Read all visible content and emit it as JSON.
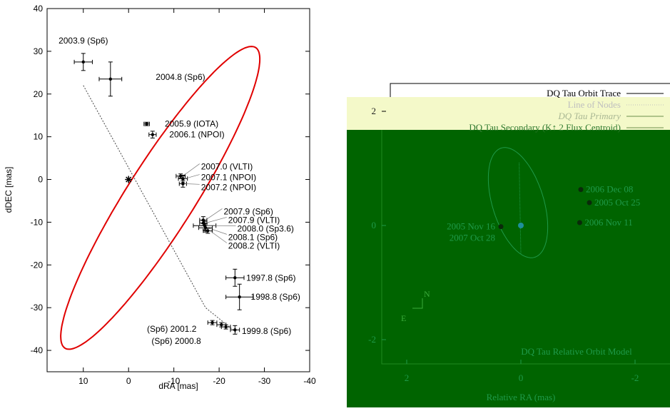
{
  "left_chart": {
    "chart_data": {
      "type": "scatter",
      "xlabel": "dRA [mas]",
      "ylabel": "dDEC [mas]",
      "xlim": [
        18,
        -40
      ],
      "ylim": [
        -45,
        40
      ],
      "x_ticks": [
        10,
        0,
        -10,
        -20,
        -30,
        -40
      ],
      "x_tick_labels": [
        "10",
        "0",
        "-10",
        "-20",
        "-30",
        "-40"
      ],
      "y_ticks": [
        40,
        30,
        20,
        10,
        0,
        -10,
        -20,
        -30,
        -40
      ],
      "y_tick_labels": [
        "40",
        "30",
        "20",
        "10",
        "0",
        "-10",
        "-20",
        "-30",
        "-40"
      ],
      "grid": false,
      "orbit_color": "#e00000",
      "primary_star": {
        "x": 0,
        "y": 0
      },
      "line_of_nodes": [
        [
          10,
          22
        ],
        [
          -17,
          -30
        ],
        [
          -24,
          -36
        ]
      ],
      "orbit": {
        "center": [
          -7,
          -4.3
        ],
        "semi_axes": [
          41,
          7.6
        ],
        "angle_deg": -59.2
      },
      "points": [
        {
          "label": "2003.9 (Sp6)",
          "x": 10,
          "y": 27.5,
          "ex": 2,
          "ey": 2,
          "lx": 10,
          "ly": 32.5,
          "anchor": "middle"
        },
        {
          "label": "2004.8 (Sp6)",
          "x": 4,
          "y": 23.5,
          "ex": 2.5,
          "ey": 4,
          "lx": -6,
          "ly": 24,
          "anchor": "start"
        },
        {
          "label": "2005.9 (IOTA)",
          "x": -4,
          "y": 13,
          "ex": 0.6,
          "ey": 0.4,
          "lx": -8,
          "ly": 13,
          "anchor": "start"
        },
        {
          "label": "2006.1 (NPOI)",
          "x": -5.3,
          "y": 10.5,
          "ex": 0.8,
          "ey": 0.8,
          "lx": -9,
          "ly": 10.5,
          "anchor": "start"
        },
        {
          "label": "2007.0 (VLTI)",
          "x": -11.5,
          "y": 0.8,
          "ex": 1,
          "ey": 0.5,
          "lx": -16,
          "ly": 3,
          "anchor": "start"
        },
        {
          "label": "2007.1 (NPOI)",
          "x": -12,
          "y": 0.2,
          "ex": 1,
          "ey": 0.8,
          "lx": -16,
          "ly": 0.5,
          "anchor": "start"
        },
        {
          "label": "2007.2 (NPOI)",
          "x": -12,
          "y": -1,
          "ex": 0.8,
          "ey": 0.8,
          "lx": -16,
          "ly": -1.8,
          "anchor": "start"
        },
        {
          "label": "2007.9 (Sp6)",
          "x": -16.5,
          "y": -9.5,
          "ex": 0.8,
          "ey": 0.8,
          "lx": -21,
          "ly": -7.5,
          "anchor": "start"
        },
        {
          "label": "2007.9 (VLTI)",
          "x": -16.5,
          "y": -10.2,
          "ex": 0.8,
          "ey": 0.6,
          "lx": -22,
          "ly": -9.5,
          "anchor": "start"
        },
        {
          "label": "2008.0 (Sp3.6)",
          "x": -16.8,
          "y": -10.8,
          "ex": 2.5,
          "ey": 1,
          "lx": -24,
          "ly": -11.5,
          "anchor": "start"
        },
        {
          "label": "2008.1 (Sp6)",
          "x": -17,
          "y": -11.3,
          "ex": 1.5,
          "ey": 1,
          "lx": -22,
          "ly": -13.5,
          "anchor": "start"
        },
        {
          "label": "2008.2 (VLTI)",
          "x": -17.5,
          "y": -12,
          "ex": 1,
          "ey": 0.6,
          "lx": -22,
          "ly": -15.5,
          "anchor": "start"
        },
        {
          "label": "1997.8 (Sp6)",
          "x": -23.5,
          "y": -23,
          "ex": 2,
          "ey": 2,
          "lx": -26,
          "ly": -23,
          "anchor": "start"
        },
        {
          "label": "1998.8 (Sp6)",
          "x": -24.5,
          "y": -27.5,
          "ex": 3,
          "ey": 3,
          "lx": -27,
          "ly": -27.5,
          "anchor": "start"
        },
        {
          "label": "1999.8 (Sp6)",
          "x": -23.5,
          "y": -35.2,
          "ex": 1,
          "ey": 1,
          "lx": -25,
          "ly": -35.5,
          "anchor": "start"
        },
        {
          "label": "(Sp6) 2001.2",
          "x": -21.5,
          "y": -34.5,
          "ex": 1,
          "ey": 0.5,
          "lx": -15,
          "ly": -35,
          "anchor": "end"
        },
        {
          "label": "(Sp6) 2000.8",
          "x": -20.5,
          "y": -34,
          "ex": 1,
          "ey": 0.5,
          "lx": -16,
          "ly": -37.8,
          "anchor": "end"
        },
        {
          "label": "",
          "x": -18.5,
          "y": -33.5,
          "ex": 1,
          "ey": 0.5
        }
      ]
    }
  },
  "right_chart": {
    "chart_data": {
      "type": "line",
      "title": "DQ Tau Relative Orbit Model",
      "xlabel": "Relative RA (mas)",
      "ylabel": "",
      "xlim": [
        2.7,
        -2.7
      ],
      "ylim": [
        -2.7,
        2.2
      ],
      "x_ticks": [
        2,
        0,
        -2
      ],
      "x_tick_labels": [
        "2",
        "0",
        "-2"
      ],
      "y_ticks": [
        2,
        0,
        -2
      ],
      "y_tick_labels": [
        "2",
        "0",
        "-2"
      ],
      "background_color": "#006400",
      "band_color": "#f4f9c9",
      "legend_position": "top-right",
      "legend": [
        {
          "name": "DQ Tau Orbit Trace",
          "style": "solid"
        },
        {
          "name": "Line of Nodes",
          "style": "dotted"
        },
        {
          "name": "DQ Tau Primary",
          "style": "solid"
        },
        {
          "name": "DQ Tau Secondary (K↑ 2 Flux Centroid)",
          "style": "solid"
        }
      ],
      "primary": {
        "x": 0,
        "y": 0
      },
      "line_of_nodes": [
        [
          0.03,
          1.1
        ],
        [
          0,
          -0.5
        ]
      ],
      "orbit": {
        "center": [
          0.05,
          0.4
        ],
        "semi_axes": [
          1.0,
          0.45
        ],
        "angle_deg": 73
      },
      "epochs": [
        {
          "label": "2006 Dec 08",
          "x": -1.05,
          "y": 0.63
        },
        {
          "label": "2005 Oct 25",
          "x": -1.2,
          "y": 0.4
        },
        {
          "label": "2006 Nov 11",
          "x": -1.03,
          "y": 0.05
        },
        {
          "label": "2005 Nov 16",
          "x": 0.35,
          "y": -0.02
        },
        {
          "label": "2007 Oct 28",
          "x": 0.35,
          "y": -0.02
        }
      ],
      "compass": {
        "north": "N",
        "east": "E"
      }
    }
  }
}
